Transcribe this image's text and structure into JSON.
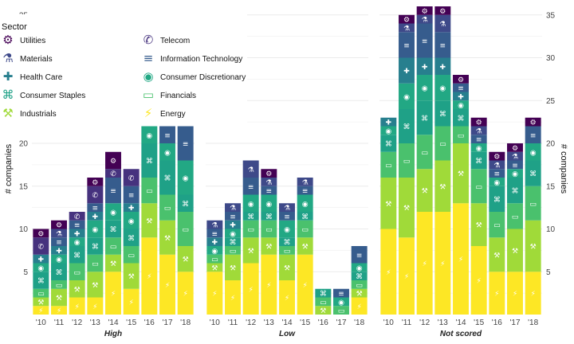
{
  "chart_data": {
    "type": "bar",
    "stacked": true,
    "legend": {
      "title": "Sector",
      "placement": "top-left",
      "entries": [
        {
          "name": "Utilities",
          "icon": "cogs-icon"
        },
        {
          "name": "Telecom",
          "icon": "phone-icon"
        },
        {
          "name": "Materials",
          "icon": "flask-icon"
        },
        {
          "name": "Information Technology",
          "icon": "rss-icon"
        },
        {
          "name": "Health Care",
          "icon": "medkit-icon"
        },
        {
          "name": "Consumer Discretionary",
          "icon": "camera-icon"
        },
        {
          "name": "Consumer Staples",
          "icon": "cart-icon"
        },
        {
          "name": "Financials",
          "icon": "money-icon"
        },
        {
          "name": "Industrials",
          "icon": "wrench-icon"
        },
        {
          "name": "Energy",
          "icon": "bolt-icon"
        }
      ]
    },
    "ylabel_left": "# companies",
    "ylabel_right": "# companies",
    "ylim": [
      0,
      36
    ],
    "yticks": [
      5,
      10,
      15,
      20,
      25,
      30,
      35
    ],
    "sectors": [
      "Energy",
      "Industrials",
      "Financials",
      "Consumer Staples",
      "Consumer Discretionary",
      "Health Care",
      "Information Technology",
      "Materials",
      "Telecom",
      "Utilities"
    ],
    "colors": {
      "Energy": "#fde725",
      "Industrials": "#a0da39",
      "Financials": "#4ac16d",
      "Consumer Staples": "#1fa187",
      "Consumer Discretionary": "#22a884",
      "Health Care": "#277f8e",
      "Information Technology": "#365c8d",
      "Materials": "#3e4989",
      "Telecom": "#46327e",
      "Utilities": "#440154"
    },
    "panels": [
      {
        "label": "High",
        "categories": [
          "'10",
          "'11",
          "'12",
          "'13",
          "'14",
          "'15",
          "'16",
          "'17",
          "'18"
        ],
        "stacks": [
          {
            "Energy": 1,
            "Industrials": 1,
            "Financials": 1,
            "Consumer Staples": 2,
            "Consumer Discretionary": 1,
            "Health Care": 1,
            "Information Technology": 0,
            "Materials": 0,
            "Telecom": 2,
            "Utilities": 1
          },
          {
            "Energy": 1,
            "Industrials": 2,
            "Financials": 1,
            "Consumer Staples": 2,
            "Consumer Discretionary": 1,
            "Health Care": 1,
            "Information Technology": 1,
            "Materials": 1,
            "Telecom": 0,
            "Utilities": 1
          },
          {
            "Energy": 2,
            "Industrials": 2,
            "Financials": 2,
            "Consumer Staples": 2,
            "Consumer Discretionary": 1,
            "Health Care": 1,
            "Information Technology": 1,
            "Materials": 0,
            "Telecom": 1,
            "Utilities": 0
          },
          {
            "Energy": 2,
            "Industrials": 3,
            "Financials": 2,
            "Consumer Staples": 2,
            "Consumer Discretionary": 2,
            "Health Care": 1,
            "Information Technology": 1,
            "Materials": 0,
            "Telecom": 2,
            "Utilities": 1
          },
          {
            "Energy": 5,
            "Industrials": 2,
            "Financials": 2,
            "Consumer Staples": 2,
            "Consumer Discretionary": 2,
            "Health Care": 0,
            "Information Technology": 3,
            "Materials": 0,
            "Telecom": 1,
            "Utilities": 2
          },
          {
            "Energy": 3,
            "Industrials": 3,
            "Financials": 2,
            "Consumer Staples": 2,
            "Consumer Discretionary": 2,
            "Health Care": 1,
            "Information Technology": 2,
            "Materials": 0,
            "Telecom": 2,
            "Utilities": 0
          },
          {
            "Energy": 9,
            "Industrials": 4,
            "Financials": 3,
            "Consumer Staples": 4,
            "Consumer Discretionary": 2,
            "Health Care": 0,
            "Information Technology": 0,
            "Materials": 0,
            "Telecom": 0,
            "Utilities": 0
          },
          {
            "Energy": 7,
            "Industrials": 4,
            "Financials": 3,
            "Consumer Staples": 4,
            "Consumer Discretionary": 2,
            "Health Care": 0,
            "Information Technology": 2,
            "Materials": 0,
            "Telecom": 0,
            "Utilities": 0
          },
          {
            "Energy": 5,
            "Industrials": 3,
            "Financials": 4,
            "Consumer Staples": 2,
            "Consumer Discretionary": 4,
            "Health Care": 0,
            "Information Technology": 4,
            "Materials": 0,
            "Telecom": 0,
            "Utilities": 0
          }
        ]
      },
      {
        "label": "Low",
        "categories": [
          "'10",
          "'11",
          "'12",
          "'13",
          "'14",
          "'15",
          "'16",
          "'17",
          "'18"
        ],
        "stacks": [
          {
            "Energy": 5,
            "Industrials": 1,
            "Financials": 1,
            "Consumer Staples": 0,
            "Consumer Discretionary": 1,
            "Health Care": 1,
            "Information Technology": 1,
            "Materials": 1,
            "Telecom": 0,
            "Utilities": 0
          },
          {
            "Energy": 4,
            "Industrials": 3,
            "Financials": 1,
            "Consumer Staples": 1,
            "Consumer Discretionary": 1,
            "Health Care": 1,
            "Information Technology": 1,
            "Materials": 1,
            "Telecom": 0,
            "Utilities": 0
          },
          {
            "Energy": 6,
            "Industrials": 3,
            "Financials": 2,
            "Consumer Staples": 1,
            "Consumer Discretionary": 2,
            "Health Care": 0,
            "Information Technology": 2,
            "Materials": 2,
            "Telecom": 0,
            "Utilities": 0
          },
          {
            "Energy": 7,
            "Industrials": 2,
            "Financials": 2,
            "Consumer Staples": 1,
            "Consumer Discretionary": 2,
            "Health Care": 0,
            "Information Technology": 1,
            "Materials": 1,
            "Telecom": 0,
            "Utilities": 1
          },
          {
            "Energy": 4,
            "Industrials": 3,
            "Financials": 1,
            "Consumer Staples": 1,
            "Consumer Discretionary": 2,
            "Health Care": 0,
            "Information Technology": 1,
            "Materials": 1,
            "Telecom": 0,
            "Utilities": 0
          },
          {
            "Energy": 7,
            "Industrials": 2,
            "Financials": 2,
            "Consumer Staples": 1,
            "Consumer Discretionary": 2,
            "Health Care": 0,
            "Information Technology": 1,
            "Materials": 1,
            "Telecom": 0,
            "Utilities": 0
          },
          {
            "Energy": 0,
            "Industrials": 1,
            "Financials": 1,
            "Consumer Staples": 1,
            "Consumer Discretionary": 0,
            "Health Care": 0,
            "Information Technology": 0,
            "Materials": 0,
            "Telecom": 0,
            "Utilities": 0
          },
          {
            "Energy": 0,
            "Industrials": 0,
            "Financials": 1,
            "Consumer Staples": 0,
            "Consumer Discretionary": 1,
            "Health Care": 0,
            "Information Technology": 1,
            "Materials": 0,
            "Telecom": 0,
            "Utilities": 0
          },
          {
            "Energy": 2,
            "Industrials": 1,
            "Financials": 1,
            "Consumer Staples": 1,
            "Consumer Discretionary": 1,
            "Health Care": 0,
            "Information Technology": 2,
            "Materials": 0,
            "Telecom": 0,
            "Utilities": 0
          }
        ]
      },
      {
        "label": "Not scored",
        "categories": [
          "'10",
          "'11",
          "'12",
          "'13",
          "'14",
          "'15",
          "'16",
          "'17",
          "'18"
        ],
        "stacks": [
          {
            "Energy": 10,
            "Industrials": 6,
            "Financials": 3,
            "Consumer Staples": 2,
            "Consumer Discretionary": 1,
            "Health Care": 1,
            "Information Technology": 0,
            "Materials": 0,
            "Telecom": 0,
            "Utilities": 0
          },
          {
            "Energy": 9,
            "Industrials": 7,
            "Financials": 4,
            "Consumer Staples": 4,
            "Consumer Discretionary": 3,
            "Health Care": 3,
            "Information Technology": 3,
            "Materials": 1,
            "Telecom": 0,
            "Utilities": 1
          },
          {
            "Energy": 12,
            "Industrials": 5,
            "Financials": 4,
            "Consumer Staples": 4,
            "Consumer Discretionary": 3,
            "Health Care": 2,
            "Information Technology": 4,
            "Materials": 1,
            "Telecom": 0,
            "Utilities": 1
          },
          {
            "Energy": 12,
            "Industrials": 6,
            "Financials": 4,
            "Consumer Staples": 3,
            "Consumer Discretionary": 3,
            "Health Care": 2,
            "Information Technology": 3,
            "Materials": 2,
            "Telecom": 0,
            "Utilities": 1
          },
          {
            "Energy": 13,
            "Industrials": 7,
            "Financials": 2,
            "Consumer Staples": 2,
            "Consumer Discretionary": 1,
            "Health Care": 1,
            "Information Technology": 1,
            "Materials": 0,
            "Telecom": 0,
            "Utilities": 1
          },
          {
            "Energy": 8,
            "Industrials": 5,
            "Financials": 4,
            "Consumer Staples": 2,
            "Consumer Discretionary": 1,
            "Health Care": 0,
            "Information Technology": 1,
            "Materials": 1,
            "Telecom": 0,
            "Utilities": 1
          },
          {
            "Energy": 5,
            "Industrials": 4,
            "Financials": 3,
            "Consumer Staples": 3,
            "Consumer Discretionary": 1,
            "Health Care": 0,
            "Information Technology": 1,
            "Materials": 1,
            "Telecom": 0,
            "Utilities": 1
          },
          {
            "Energy": 5,
            "Industrials": 5,
            "Financials": 3,
            "Consumer Staples": 3,
            "Consumer Discretionary": 1,
            "Health Care": 0,
            "Information Technology": 1,
            "Materials": 1,
            "Telecom": 0,
            "Utilities": 1
          },
          {
            "Energy": 5,
            "Industrials": 6,
            "Financials": 4,
            "Consumer Staples": 3,
            "Consumer Discretionary": 2,
            "Health Care": 0,
            "Information Technology": 2,
            "Materials": 0,
            "Telecom": 0,
            "Utilities": 1
          }
        ]
      }
    ]
  }
}
